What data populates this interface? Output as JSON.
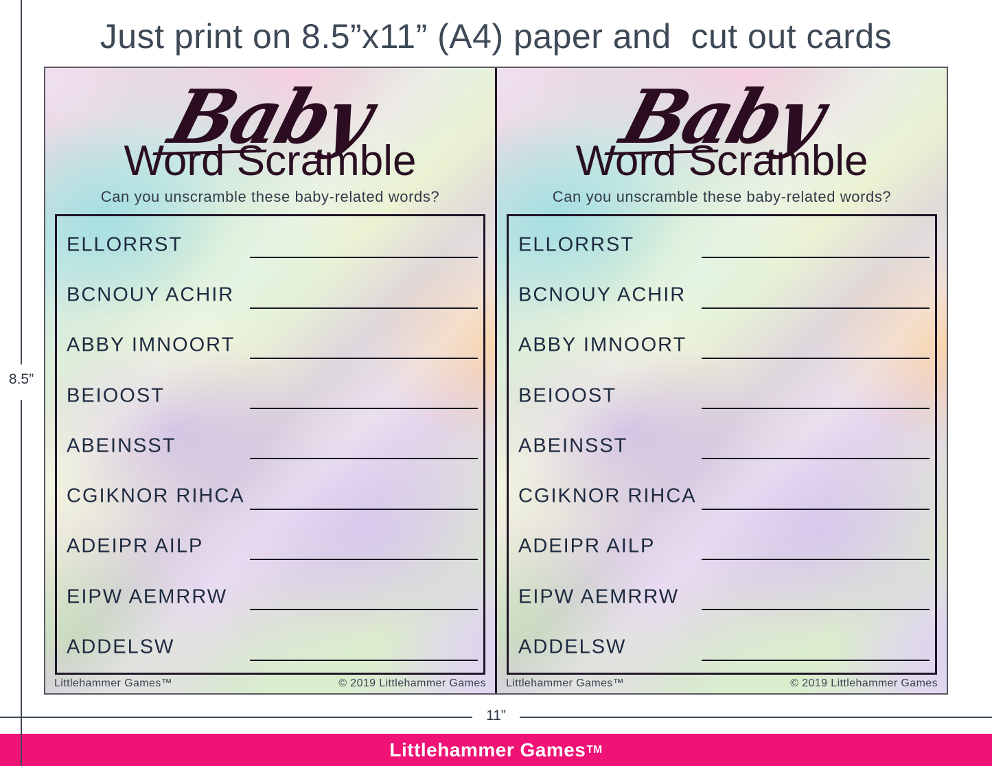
{
  "page": {
    "header_title": "Just print on 8.5”x11” (A4) paper and  cut out cards",
    "height_dimension_label": "8.5”",
    "width_dimension_label": "11”"
  },
  "card": {
    "script_title": "Baby",
    "title": "Word Scramble",
    "subtitle": "Can you unscramble these baby-related words?",
    "words": [
      "ELLORRST",
      "BCNOUY ACHIR",
      "ABBY IMNOORT",
      "BEIOOST",
      "ABEINSST",
      "CGIKNOR RIHCA",
      "ADEIPR AILP",
      "EIPW AEMRRW",
      "ADDELSW"
    ],
    "footer_left": "Littlehammer Games™",
    "footer_right": "© 2019 Littlehammer Games"
  },
  "brand_bar": {
    "label": "Littlehammer Games",
    "tm": "TM"
  },
  "colors": {
    "brand_pink": "#EE1374",
    "dimension_line": "#3E4A56",
    "header_ink": "#3E4957",
    "title_ink": "#2A0F22",
    "word_ink": "#1D2A40"
  }
}
